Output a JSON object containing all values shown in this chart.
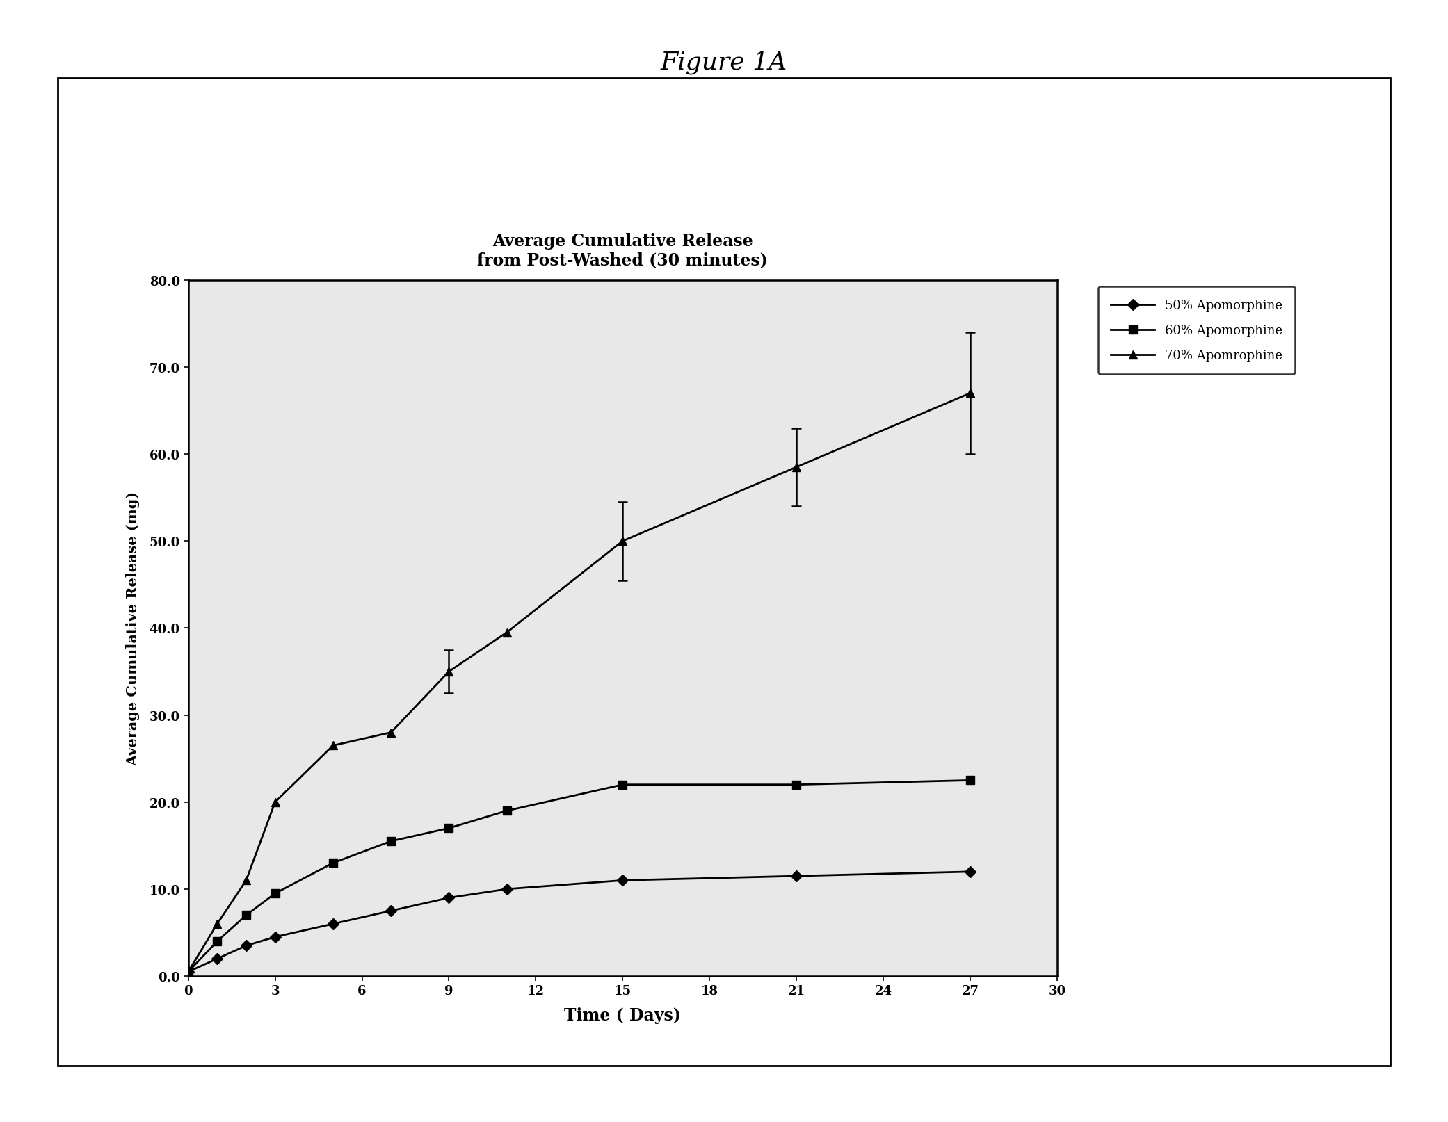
{
  "title_line1": "Average Cumulative Release",
  "title_line2": "from Post-Washed (30 minutes)",
  "figure_title": "Figure 1A",
  "xlabel": "Time ( Days)",
  "ylabel": "Average Cumulative Release (mg)",
  "xlim": [
    0,
    30
  ],
  "ylim": [
    0,
    80
  ],
  "xticks": [
    0,
    3,
    6,
    9,
    12,
    15,
    18,
    21,
    24,
    27,
    30
  ],
  "yticks": [
    0.0,
    10.0,
    20.0,
    30.0,
    40.0,
    50.0,
    60.0,
    70.0,
    80.0
  ],
  "series": [
    {
      "label": "50% Apomorphine",
      "marker": "D",
      "x": [
        0,
        1,
        2,
        3,
        5,
        7,
        9,
        11,
        15,
        21,
        27
      ],
      "y": [
        0.5,
        2.0,
        3.5,
        4.5,
        6.0,
        7.5,
        9.0,
        10.0,
        11.0,
        11.5,
        12.0
      ],
      "color": "#000000"
    },
    {
      "label": "60% Apomorphine",
      "marker": "s",
      "x": [
        0,
        1,
        2,
        3,
        5,
        7,
        9,
        11,
        15,
        21,
        27
      ],
      "y": [
        0.5,
        4.0,
        7.0,
        9.5,
        13.0,
        15.5,
        17.0,
        19.0,
        22.0,
        22.0,
        22.5
      ],
      "color": "#000000"
    },
    {
      "label": "70% Apomrophine",
      "marker": "^",
      "x": [
        0,
        1,
        2,
        3,
        5,
        7,
        9,
        11,
        15,
        21,
        27
      ],
      "y": [
        0.5,
        6.0,
        11.0,
        20.0,
        26.5,
        28.0,
        35.0,
        39.5,
        50.0,
        58.5,
        67.0
      ],
      "color": "#000000"
    }
  ],
  "error_bars": {
    "70pct": {
      "x": [
        9,
        15,
        21,
        27
      ],
      "y": [
        35.0,
        50.0,
        58.5,
        67.0
      ],
      "yerr": [
        2.5,
        4.5,
        4.5,
        7.0
      ]
    }
  },
  "background_color": "#ffffff",
  "plot_bg_color": "#e8e8e8",
  "title_fontsize": 17,
  "axis_label_fontsize": 15,
  "tick_fontsize": 13,
  "legend_fontsize": 13
}
